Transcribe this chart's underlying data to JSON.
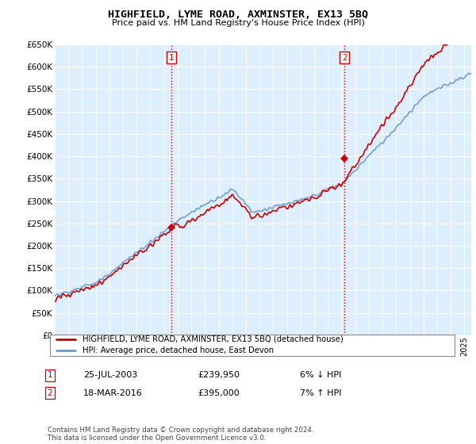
{
  "title": "HIGHFIELD, LYME ROAD, AXMINSTER, EX13 5BQ",
  "subtitle": "Price paid vs. HM Land Registry's House Price Index (HPI)",
  "legend_line1": "HIGHFIELD, LYME ROAD, AXMINSTER, EX13 5BQ (detached house)",
  "legend_line2": "HPI: Average price, detached house, East Devon",
  "sale1_date": "25-JUL-2003",
  "sale1_price": 239950,
  "sale1_pct": "6% ↓ HPI",
  "sale2_date": "18-MAR-2016",
  "sale2_price": 395000,
  "sale2_pct": "7% ↑ HPI",
  "footnote": "Contains HM Land Registry data © Crown copyright and database right 2024.\nThis data is licensed under the Open Government Licence v3.0.",
  "ylim": [
    0,
    650000
  ],
  "yticks": [
    0,
    50000,
    100000,
    150000,
    200000,
    250000,
    300000,
    350000,
    400000,
    450000,
    500000,
    550000,
    600000,
    650000
  ],
  "sale1_x": 2003.56,
  "sale2_x": 2016.21,
  "red_color": "#cc0000",
  "blue_color": "#6699cc",
  "plot_bg_color": "#ddeeff",
  "bg_color": "#ffffff",
  "grid_color": "#ffffff"
}
